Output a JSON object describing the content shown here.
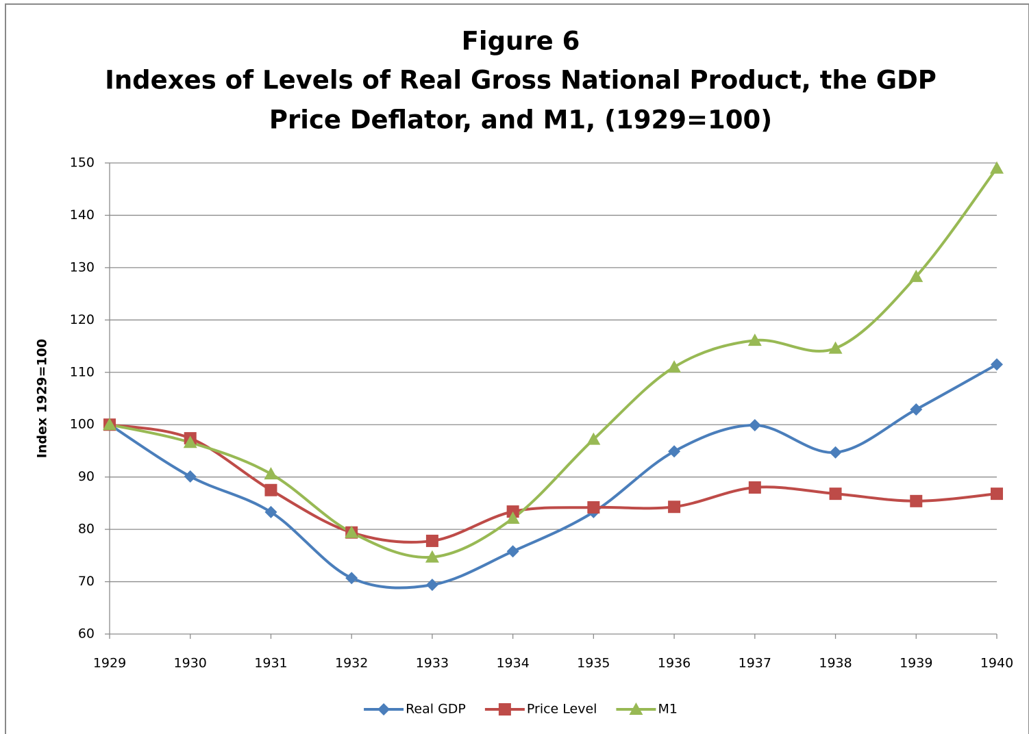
{
  "chart_data": {
    "type": "line",
    "title": [
      "Figure 6",
      "Indexes of Levels of Real Gross National  Product, the GDP",
      "Price Deflator, and M1, (1929=100)"
    ],
    "y_label": "Index 1929=100",
    "categories": [
      "1929",
      "1930",
      "1931",
      "1932",
      "1933",
      "1934",
      "1935",
      "1936",
      "1937",
      "1938",
      "1939",
      "1940"
    ],
    "series": [
      {
        "name": "Real GDP",
        "color": "#4a7ebb",
        "marker": "diamond",
        "values": [
          100,
          90.1,
          83.3,
          70.7,
          69.4,
          75.8,
          83.3,
          94.9,
          99.9,
          94.7,
          102.9,
          111.5
        ]
      },
      {
        "name": "Price Level",
        "color": "#be4b48",
        "marker": "square",
        "values": [
          100,
          97.4,
          87.5,
          79.4,
          77.8,
          83.4,
          84.2,
          84.3,
          88.0,
          86.8,
          85.4,
          86.8
        ]
      },
      {
        "name": "M1",
        "color": "#98b954",
        "marker": "triangle",
        "values": [
          100,
          96.6,
          90.6,
          79.4,
          74.7,
          82.1,
          97.2,
          111.0,
          116.1,
          114.6,
          128.3,
          149.0
        ]
      }
    ],
    "ylim": [
      60,
      150
    ],
    "yticks": [
      60,
      70,
      80,
      90,
      100,
      110,
      120,
      130,
      140,
      150
    ],
    "grid": true,
    "smooth": true,
    "legend": "bottom"
  }
}
